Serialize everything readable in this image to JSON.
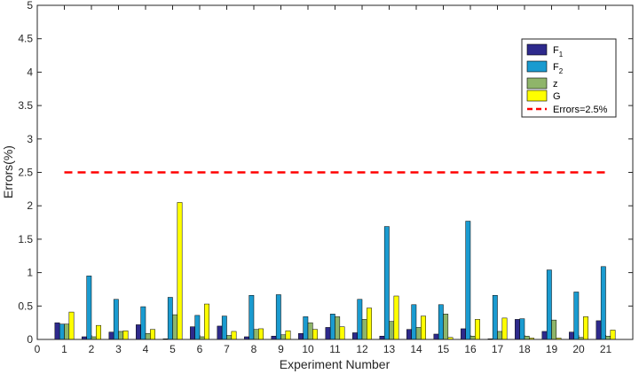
{
  "chart_data": {
    "type": "bar",
    "xlabel": "Experiment Number",
    "ylabel": "Errors(%)",
    "xlim": [
      0,
      22
    ],
    "ylim": [
      0,
      5
    ],
    "x_ticks": [
      "0",
      "1",
      "2",
      "3",
      "4",
      "5",
      "6",
      "7",
      "8",
      "9",
      "10",
      "11",
      "12",
      "13",
      "14",
      "15",
      "16",
      "17",
      "18",
      "19",
      "20",
      "21"
    ],
    "y_ticks": [
      "0",
      "0.5",
      "1",
      "1.5",
      "2",
      "2.5",
      "3",
      "3.5",
      "4",
      "4.5",
      "5"
    ],
    "categories": [
      "1",
      "2",
      "3",
      "4",
      "5",
      "6",
      "7",
      "8",
      "9",
      "10",
      "11",
      "12",
      "13",
      "14",
      "15",
      "16",
      "17",
      "18",
      "19",
      "20",
      "21"
    ],
    "series": [
      {
        "name": "F",
        "subscript": "1",
        "color": "#2e2a8c",
        "values": [
          0.25,
          0.04,
          0.11,
          0.22,
          0.01,
          0.19,
          0.2,
          0.04,
          0.05,
          0.09,
          0.18,
          0.1,
          0.05,
          0.15,
          0.08,
          0.16,
          0.01,
          0.3,
          0.12,
          0.11,
          0.28
        ]
      },
      {
        "name": "F",
        "subscript": "2",
        "color": "#1a9bd0",
        "values": [
          0.23,
          0.95,
          0.6,
          0.49,
          0.63,
          0.36,
          0.35,
          0.66,
          0.67,
          0.34,
          0.38,
          0.6,
          1.69,
          0.52,
          0.52,
          1.77,
          0.66,
          0.31,
          1.04,
          0.71,
          1.09
        ]
      },
      {
        "name": "z",
        "subscript": "",
        "color": "#8fb56a",
        "values": [
          0.23,
          0.04,
          0.12,
          0.09,
          0.37,
          0.04,
          0.06,
          0.15,
          0.07,
          0.25,
          0.34,
          0.3,
          0.27,
          0.18,
          0.38,
          0.05,
          0.12,
          0.05,
          0.29,
          0.03,
          0.05
        ]
      },
      {
        "name": "G",
        "subscript": "",
        "color": "#ffff00",
        "values": [
          0.41,
          0.21,
          0.13,
          0.15,
          2.05,
          0.53,
          0.12,
          0.16,
          0.13,
          0.15,
          0.19,
          0.47,
          0.65,
          0.35,
          0.03,
          0.3,
          0.32,
          0.02,
          0.02,
          0.34,
          0.14
        ]
      }
    ],
    "reference_line": {
      "name": "Errors=2.5%",
      "value": 2.5,
      "color": "#ff0000",
      "style": "dashed",
      "x_range": [
        1,
        21
      ]
    },
    "legend": "top-right",
    "grid": false
  }
}
